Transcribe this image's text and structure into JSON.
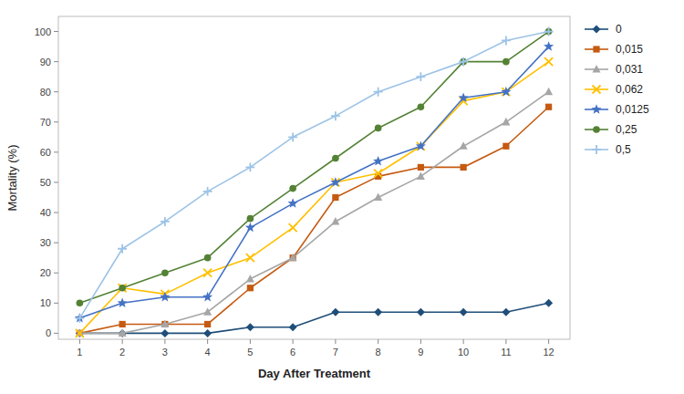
{
  "chart_data": {
    "type": "line",
    "xlabel": "Day After Treatment",
    "ylabel": "Mortality (%)",
    "x": [
      1,
      2,
      3,
      4,
      5,
      6,
      7,
      8,
      9,
      10,
      11,
      12
    ],
    "series": [
      {
        "name": "0",
        "color": "#1f4e79",
        "marker": "diamond",
        "values": [
          0,
          0,
          0,
          0,
          2,
          2,
          7,
          7,
          7,
          7,
          7,
          10
        ]
      },
      {
        "name": "0,015",
        "color": "#c55a11",
        "marker": "square",
        "values": [
          0,
          3,
          3,
          3,
          15,
          25,
          45,
          52,
          55,
          55,
          62,
          75
        ]
      },
      {
        "name": "0,031",
        "color": "#a6a6a6",
        "marker": "triangle",
        "values": [
          0,
          0,
          3,
          7,
          18,
          25,
          37,
          45,
          52,
          62,
          70,
          80
        ]
      },
      {
        "name": "0,062",
        "color": "#ffc000",
        "marker": "x",
        "values": [
          0,
          15,
          13,
          20,
          25,
          35,
          50,
          53,
          62,
          77,
          80,
          90
        ]
      },
      {
        "name": "0,0125",
        "color": "#4472c4",
        "marker": "star",
        "values": [
          5,
          10,
          12,
          12,
          35,
          43,
          50,
          57,
          62,
          78,
          80,
          95
        ]
      },
      {
        "name": "0,25",
        "color": "#548235",
        "marker": "circle",
        "values": [
          10,
          15,
          20,
          25,
          38,
          48,
          58,
          68,
          75,
          90,
          90,
          100
        ]
      },
      {
        "name": "0,5",
        "color": "#9dc3e6",
        "marker": "plus",
        "values": [
          5,
          28,
          37,
          47,
          55,
          65,
          72,
          80,
          85,
          90,
          97,
          100
        ]
      }
    ],
    "xlim": [
      0.5,
      12.5
    ],
    "ylim": [
      -2,
      105
    ],
    "xticks": [
      1,
      2,
      3,
      4,
      5,
      6,
      7,
      8,
      9,
      10,
      11,
      12
    ],
    "yticks": [
      0,
      10,
      20,
      30,
      40,
      50,
      60,
      70,
      80,
      90,
      100
    ],
    "grid": false,
    "legend": "right"
  }
}
